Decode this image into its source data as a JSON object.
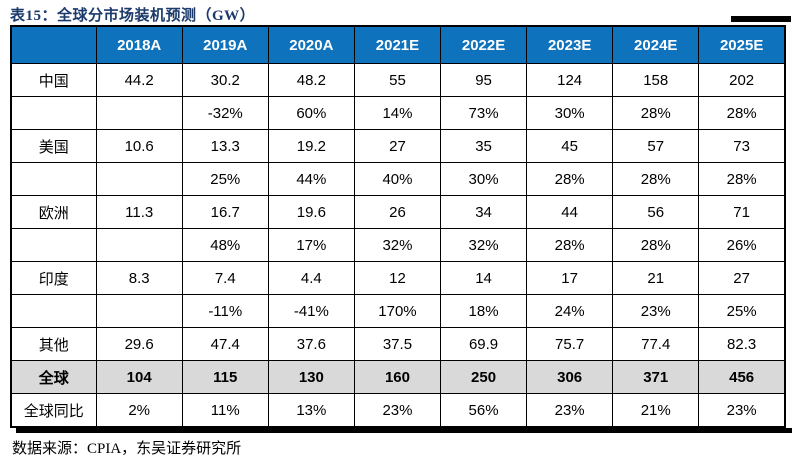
{
  "page": {
    "title": "表15：全球分市场装机预测（GW）",
    "source_note": "数据来源：CPIA，东吴证券研究所"
  },
  "colors": {
    "header_bg": "#0F72BC",
    "header_text": "#FFFFFF",
    "title_text": "#1B3A6B",
    "total_row_bg": "#D9D9D9",
    "border": "#000000",
    "cell_bg": "#FFFFFF"
  },
  "chart_data": {
    "type": "table",
    "title": "全球分市场装机预测（GW）",
    "source": "数据来源：CPIA，东吴证券研究所",
    "columns": [
      "",
      "2018A",
      "2019A",
      "2020A",
      "2021E",
      "2022E",
      "2023E",
      "2024E",
      "2025E"
    ],
    "rows": [
      {
        "label": "中国",
        "style": "value",
        "cells": [
          "44.2",
          "30.2",
          "48.2",
          "55",
          "95",
          "124",
          "158",
          "202"
        ]
      },
      {
        "label": "",
        "style": "growth",
        "cells": [
          "",
          "-32%",
          "60%",
          "14%",
          "73%",
          "30%",
          "28%",
          "28%"
        ]
      },
      {
        "label": "美国",
        "style": "value",
        "cells": [
          "10.6",
          "13.3",
          "19.2",
          "27",
          "35",
          "45",
          "57",
          "73"
        ]
      },
      {
        "label": "",
        "style": "growth",
        "cells": [
          "",
          "25%",
          "44%",
          "40%",
          "30%",
          "28%",
          "28%",
          "28%"
        ]
      },
      {
        "label": "欧洲",
        "style": "value",
        "cells": [
          "11.3",
          "16.7",
          "19.6",
          "26",
          "34",
          "44",
          "56",
          "71"
        ]
      },
      {
        "label": "",
        "style": "growth",
        "cells": [
          "",
          "48%",
          "17%",
          "32%",
          "32%",
          "28%",
          "28%",
          "26%"
        ]
      },
      {
        "label": "印度",
        "style": "value",
        "cells": [
          "8.3",
          "7.4",
          "4.4",
          "12",
          "14",
          "17",
          "21",
          "27"
        ]
      },
      {
        "label": "",
        "style": "growth",
        "cells": [
          "",
          "-11%",
          "-41%",
          "170%",
          "18%",
          "24%",
          "23%",
          "25%"
        ]
      },
      {
        "label": "其他",
        "style": "value",
        "cells": [
          "29.6",
          "47.4",
          "37.6",
          "37.5",
          "69.9",
          "75.7",
          "77.4",
          "82.3"
        ]
      },
      {
        "label": "全球",
        "style": "total",
        "cells": [
          "104",
          "115",
          "130",
          "160",
          "250",
          "306",
          "371",
          "456"
        ]
      },
      {
        "label": "全球同比",
        "style": "value",
        "cells": [
          "2%",
          "11%",
          "13%",
          "23%",
          "56%",
          "23%",
          "21%",
          "23%"
        ]
      }
    ]
  }
}
